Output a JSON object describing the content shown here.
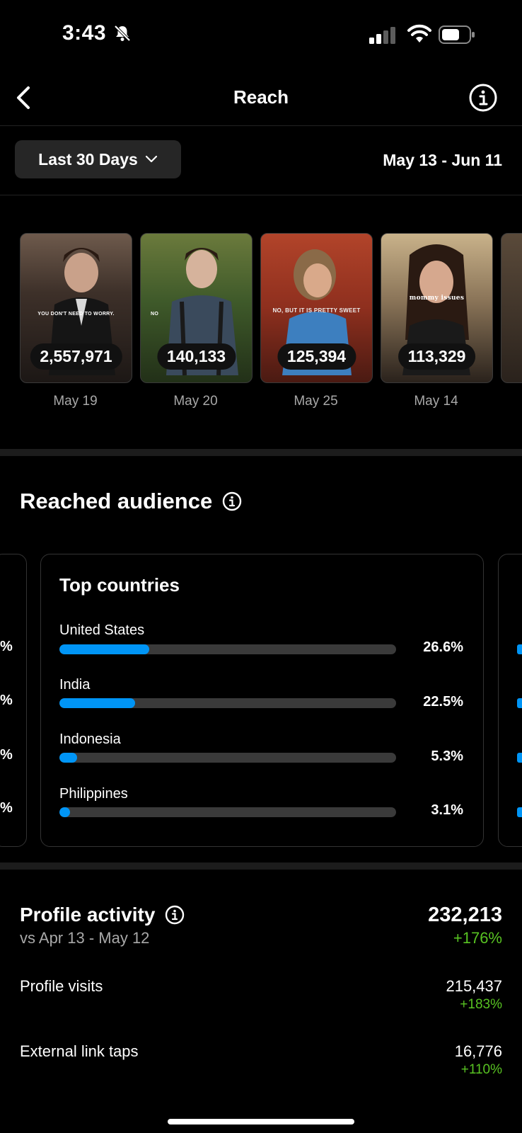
{
  "status_bar": {
    "time": "3:43"
  },
  "nav": {
    "title": "Reach"
  },
  "range": {
    "selector_label": "Last 30 Days",
    "dates": "May 13 - Jun 11"
  },
  "top_posts": [
    {
      "count": "2,557,971",
      "date": "May 19",
      "caption": "YOU DON'T NEED TO WORRY."
    },
    {
      "count": "140,133",
      "date": "May 20",
      "caption": "NO"
    },
    {
      "count": "125,394",
      "date": "May 25",
      "caption": "NO, BUT IT IS PRETTY SWEET"
    },
    {
      "count": "113,329",
      "date": "May 14",
      "caption": "mommy issues"
    }
  ],
  "reached_audience": {
    "title": "Reached audience",
    "top_countries": {
      "title": "Top countries",
      "items": [
        {
          "name": "United States",
          "percent": "26.6%",
          "value": 26.6
        },
        {
          "name": "India",
          "percent": "22.5%",
          "value": 22.5
        },
        {
          "name": "Indonesia",
          "percent": "5.3%",
          "value": 5.3
        },
        {
          "name": "Philippines",
          "percent": "3.1%",
          "value": 3.1
        }
      ]
    }
  },
  "profile_activity": {
    "title": "Profile activity",
    "compare": "vs Apr 13 - May 12",
    "total": "232,213",
    "total_change": "+176%",
    "rows": [
      {
        "label": "Profile visits",
        "value": "215,437",
        "change": "+183%"
      },
      {
        "label": "External link taps",
        "value": "16,776",
        "change": "+110%"
      }
    ]
  }
}
